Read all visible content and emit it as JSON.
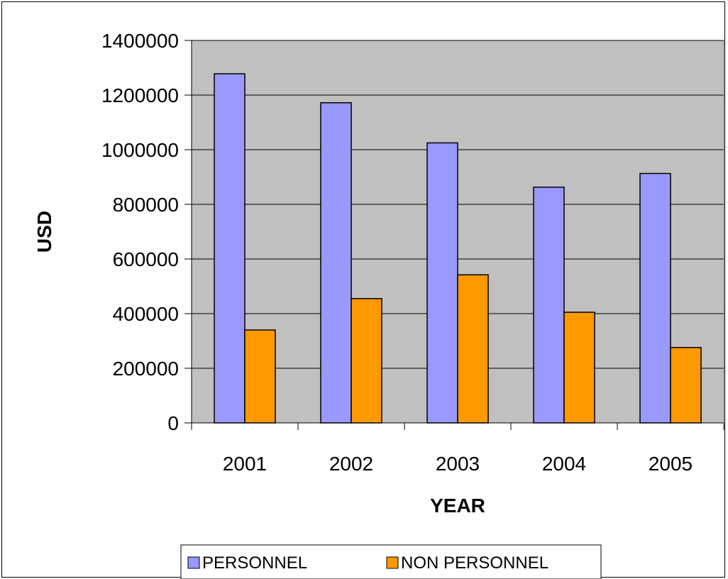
{
  "chart_data": {
    "type": "bar",
    "title": "",
    "xlabel": "YEAR",
    "ylabel": "USD",
    "categories": [
      "2001",
      "2002",
      "2003",
      "2004",
      "2005"
    ],
    "ylim": [
      0,
      1400000
    ],
    "yticks": [
      "0",
      "200000",
      "400000",
      "600000",
      "800000",
      "1000000",
      "1200000",
      "1400000"
    ],
    "grid": true,
    "legend_position": "bottom",
    "plot_background": "#c0c0c0",
    "series": [
      {
        "name": "PERSONNEL",
        "color": "#9999ff",
        "values": [
          1278000,
          1172000,
          1025000,
          863000,
          913000
        ]
      },
      {
        "name": "NON PERSONNEL",
        "color": "#ff9900",
        "values": [
          340000,
          455000,
          542000,
          405000,
          276000
        ]
      }
    ]
  }
}
